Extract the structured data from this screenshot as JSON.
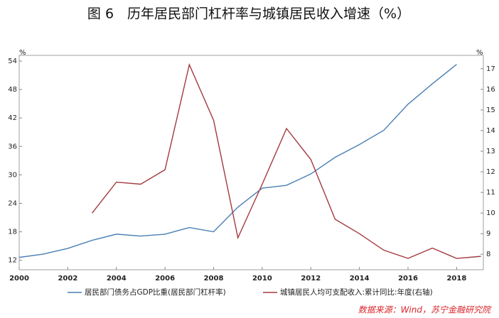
{
  "chart_data": {
    "type": "line",
    "title": "图 6　历年居民部门杠杆率与城镇居民收入增速（%）",
    "y_unit": "%",
    "y2_unit": "%",
    "source": "数据来源：Wind，苏宁金融研究院",
    "xlim": [
      2000,
      2019.1
    ],
    "xticks": [
      2000,
      2002,
      2004,
      2006,
      2008,
      2010,
      2012,
      2014,
      2016,
      2018
    ],
    "ylim": [
      10,
      55.2
    ],
    "yticks": [
      12,
      18,
      24,
      30,
      36,
      42,
      48,
      54
    ],
    "y2lim": [
      7.25,
      17.65
    ],
    "y2ticks": [
      8,
      9,
      10,
      11,
      12,
      13,
      14,
      15,
      16,
      17
    ],
    "series": [
      {
        "name": "居民部门债务占GDP比重(居民部门杠杆率)",
        "color": "#4a7fb5",
        "x": [
          2000,
          2001,
          2002,
          2003,
          2004,
          2005,
          2006,
          2007,
          2008,
          2009,
          2010,
          2011,
          2012,
          2013,
          2014,
          2015,
          2016,
          2017,
          2018
        ],
        "values": [
          12.6,
          13.3,
          14.5,
          16.2,
          17.5,
          17.1,
          17.5,
          18.9,
          18.0,
          23.2,
          27.2,
          27.8,
          30.2,
          33.7,
          36.4,
          39.4,
          44.9,
          49.2,
          53.3
        ]
      },
      {
        "name": "城镇居民人均可支配收入:累计同比:年度(右轴)",
        "color": "#a33a3f",
        "axis": "y2",
        "x": [
          2003,
          2004,
          2005,
          2006,
          2007,
          2008,
          2009,
          2010,
          2011,
          2012,
          2013,
          2014,
          2015,
          2016,
          2017,
          2018,
          2019
        ],
        "values": [
          10.0,
          11.5,
          11.4,
          12.1,
          17.2,
          14.5,
          8.8,
          11.4,
          14.1,
          12.6,
          9.7,
          9.0,
          8.2,
          7.8,
          8.3,
          7.8,
          7.9
        ]
      }
    ]
  }
}
